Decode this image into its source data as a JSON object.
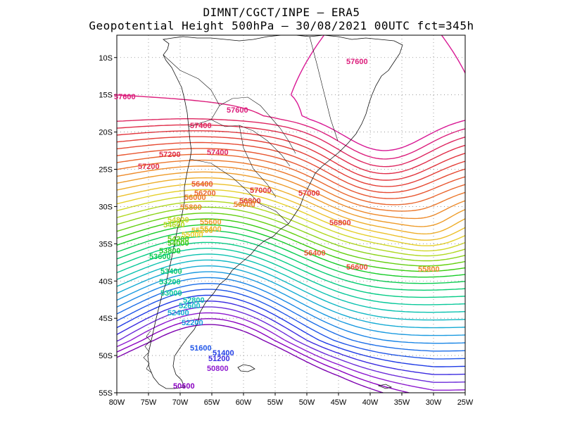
{
  "title": {
    "line1": "DIMNT/CGCT/INPE –  ERA5",
    "line2": "Geopotential Height 500hPa –  30/08/2021 00UTC fct=345h"
  },
  "map": {
    "lon_range": [
      -80,
      -25
    ],
    "lat_range": [
      -55,
      -7
    ],
    "grid": "dotted",
    "lon_ticks": [
      "80W",
      "75W",
      "70W",
      "65W",
      "60W",
      "55W",
      "50W",
      "45W",
      "40W",
      "35W",
      "30W",
      "25W"
    ],
    "lat_ticks": [
      "10S",
      "15S",
      "20S",
      "25S",
      "30S",
      "35S",
      "40S",
      "45S",
      "50S",
      "55S"
    ]
  },
  "contours": {
    "interval_m": 200,
    "low_value": 50400,
    "high_value": 57800,
    "colors": {
      "50400": "#7d00b0",
      "50600": "#8a00c0",
      "50800": "#8e1bd0",
      "51000": "#6b2bd9",
      "51200": "#3b2be0",
      "51400": "#1f3be6",
      "51600": "#1f55e8",
      "51800": "#1c6ee8",
      "52000": "#1a86e6",
      "52200": "#1a9ae0",
      "52400": "#14aad4",
      "52600": "#10b8c4",
      "52800": "#0cc2b0",
      "53000": "#08c89a",
      "53200": "#06cc86",
      "53400": "#06cc70",
      "53600": "#0acc50",
      "53800": "#16cc28",
      "54000": "#3acc10",
      "54200": "#64d010",
      "54400": "#8ad418",
      "54600": "#b0d820",
      "54800": "#d0d828",
      "55000": "#e6d02a",
      "55200": "#ecc02a",
      "55400": "#eeae2a",
      "55600": "#ee9c2a",
      "55800": "#ee8a2a",
      "56000": "#ec782c",
      "56200": "#ea662e",
      "56400": "#e85630",
      "56600": "#e64a32",
      "56800": "#e43e36",
      "57000": "#e2343c",
      "57200": "#e02c48",
      "57400": "#de2660",
      "57600": "#dc1e7c",
      "57800": "#d81894"
    },
    "labels": [
      {
        "text": "57600",
        "value": 57600
      },
      {
        "text": "57600",
        "value": 57600
      },
      {
        "text": "57600",
        "value": 57600
      },
      {
        "text": "57400",
        "value": 57400
      },
      {
        "text": "57400",
        "value": 57400
      },
      {
        "text": "57200",
        "value": 57200
      },
      {
        "text": "57200",
        "value": 57200
      },
      {
        "text": "57000",
        "value": 57000
      },
      {
        "text": "57000",
        "value": 57000
      },
      {
        "text": "56800",
        "value": 56800
      },
      {
        "text": "56800",
        "value": 56800
      },
      {
        "text": "56600",
        "value": 56600
      },
      {
        "text": "56400",
        "value": 56400
      },
      {
        "text": "56400",
        "value": 56400
      },
      {
        "text": "56200",
        "value": 56200
      },
      {
        "text": "56000",
        "value": 56000
      },
      {
        "text": "56000",
        "value": 56000
      },
      {
        "text": "55800",
        "value": 55800
      },
      {
        "text": "55800",
        "value": 55800
      },
      {
        "text": "55600",
        "value": 55600
      },
      {
        "text": "55400",
        "value": 55400
      },
      {
        "text": "54800",
        "value": 54800
      },
      {
        "text": "54600",
        "value": 54600
      },
      {
        "text": "55200",
        "value": 55200
      },
      {
        "text": "55000",
        "value": 55000
      },
      {
        "text": "54200",
        "value": 54200
      },
      {
        "text": "54000",
        "value": 54000
      },
      {
        "text": "53800",
        "value": 53800
      },
      {
        "text": "53600",
        "value": 53600
      },
      {
        "text": "53400",
        "value": 53400
      },
      {
        "text": "53200",
        "value": 53200
      },
      {
        "text": "53000",
        "value": 53000
      },
      {
        "text": "52800",
        "value": 52800
      },
      {
        "text": "52600",
        "value": 52600
      },
      {
        "text": "52400",
        "value": 52400
      },
      {
        "text": "52200",
        "value": 52200
      },
      {
        "text": "51600",
        "value": 51600
      },
      {
        "text": "51400",
        "value": 51400
      },
      {
        "text": "51200",
        "value": 51200
      },
      {
        "text": "50800",
        "value": 50800
      },
      {
        "text": "50600",
        "value": 50600
      }
    ]
  }
}
